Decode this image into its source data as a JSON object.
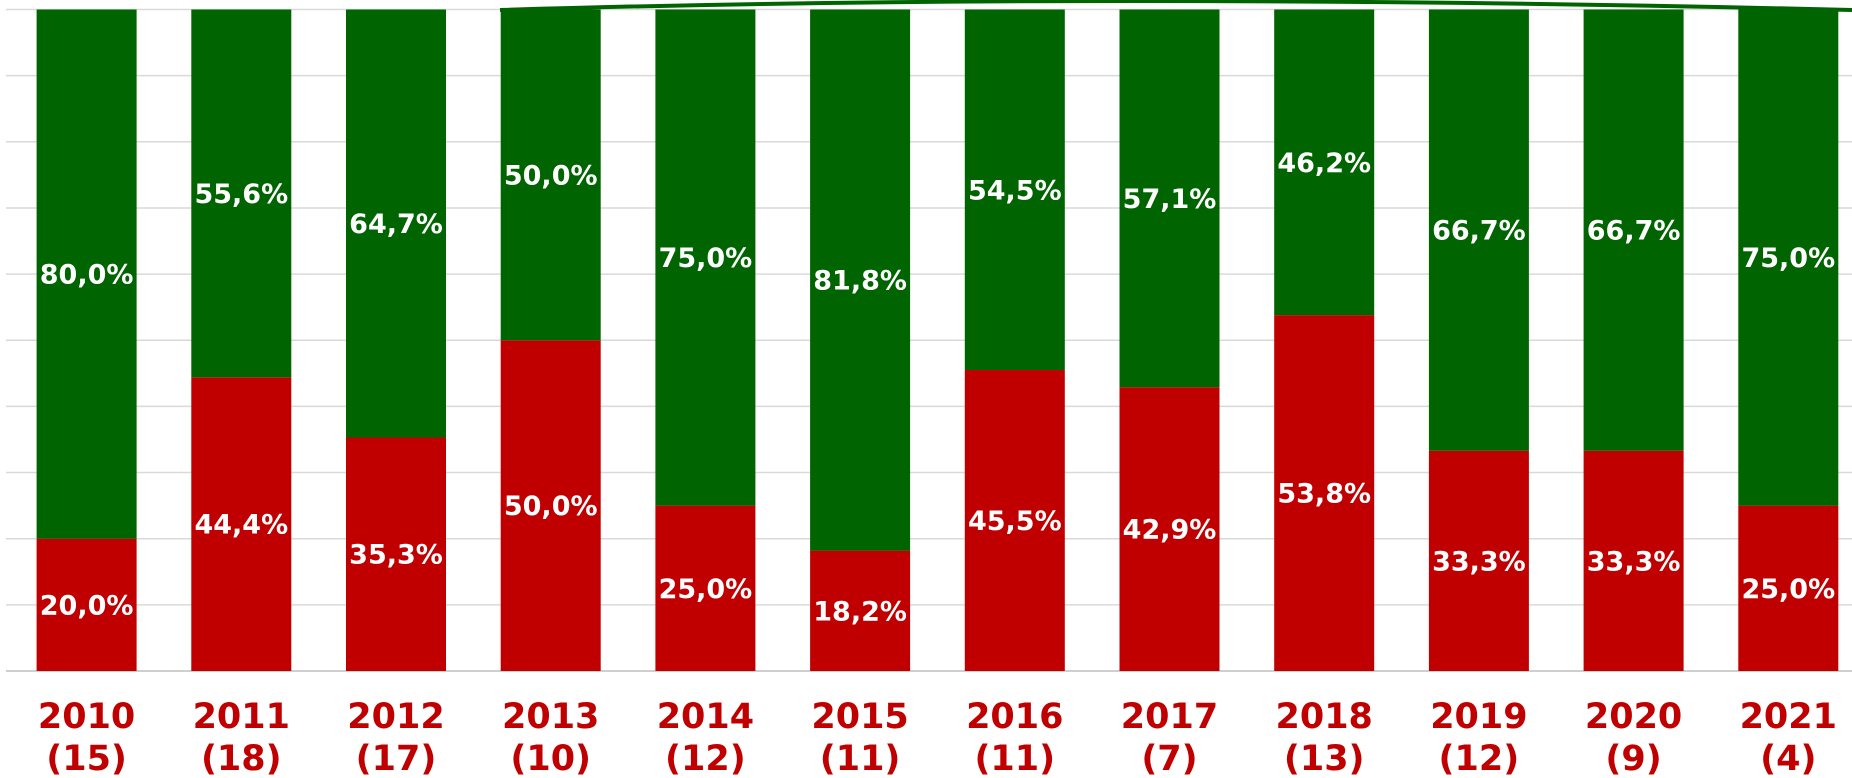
{
  "chart_data": {
    "type": "bar",
    "stacked": true,
    "categories": [
      [
        "2010",
        "(15)"
      ],
      [
        "2011",
        "(18)"
      ],
      [
        "2012",
        "(17)"
      ],
      [
        "2013",
        "(10)"
      ],
      [
        "2014",
        "(12)"
      ],
      [
        "2015",
        "(11)"
      ],
      [
        "2016",
        "(11)"
      ],
      [
        "2017",
        "(7)"
      ],
      [
        "2018",
        "(13)"
      ],
      [
        "2019",
        "(12)"
      ],
      [
        "2020",
        "(9)"
      ],
      [
        "2021",
        "(4)"
      ]
    ],
    "series": [
      {
        "color": "#c00000",
        "values": [
          20.0,
          44.4,
          35.3,
          50.0,
          25.0,
          18.2,
          45.5,
          42.9,
          53.8,
          33.3,
          33.3,
          25.0
        ],
        "value_labels": [
          "20,0%",
          "44,4%",
          "35,3%",
          "50,0%",
          "25,0%",
          "18,2%",
          "45,5%",
          "42,9%",
          "53,8%",
          "33,3%",
          "33,3%",
          "25,0%"
        ]
      },
      {
        "color": "#006400",
        "values": [
          80.0,
          55.6,
          64.7,
          50.0,
          75.0,
          81.8,
          54.5,
          57.1,
          46.2,
          66.7,
          66.7,
          75.0
        ],
        "value_labels": [
          "80,0%",
          "55,6%",
          "64,7%",
          "50,0%",
          "75,0%",
          "81,8%",
          "54,5%",
          "57,1%",
          "46,2%",
          "66,7%",
          "66,7%",
          "75,0%"
        ]
      }
    ],
    "ylim": [
      0,
      100
    ],
    "yticks": [
      0,
      10,
      20,
      30,
      40,
      50,
      60,
      70,
      80,
      90,
      100
    ],
    "grid": true
  }
}
